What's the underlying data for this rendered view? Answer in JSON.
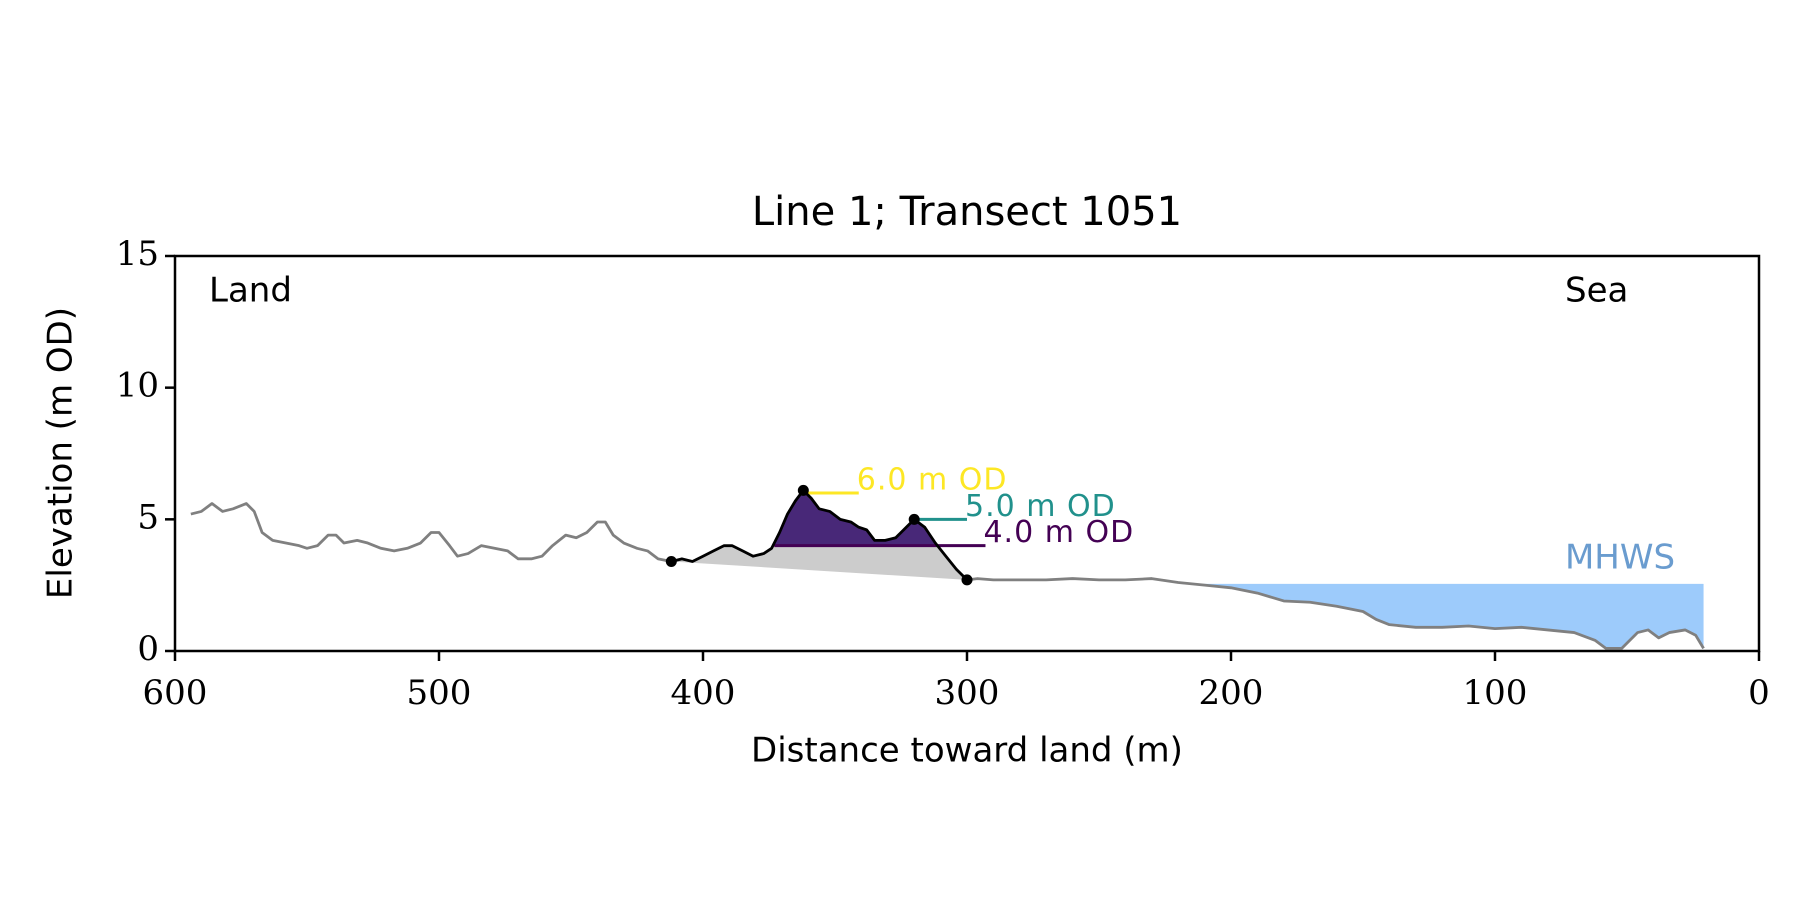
{
  "chart_data": {
    "type": "line",
    "title": "Line 1; Transect 1051",
    "xlabel": "Distance toward land (m)",
    "ylabel": "Elevation (m OD)",
    "xlim": [
      600,
      0
    ],
    "ylim": [
      0,
      15
    ],
    "xticks": [
      600,
      500,
      400,
      300,
      200,
      100,
      0
    ],
    "yticks": [
      0,
      5,
      10,
      15
    ],
    "annotations": [
      "Land",
      "Sea"
    ],
    "series": [
      {
        "color": "#808080",
        "x": [
          594,
          590,
          586,
          582,
          578,
          573,
          570,
          567,
          563,
          558,
          553,
          550,
          546,
          542,
          539,
          536,
          531,
          527,
          522,
          517,
          512,
          507,
          503,
          500,
          496,
          493,
          489,
          484,
          479,
          474,
          470,
          465,
          461,
          457,
          452,
          448,
          444,
          440,
          437,
          434,
          430,
          425,
          421,
          417,
          412
        ],
        "values": [
          5.2,
          5.3,
          5.6,
          5.3,
          5.4,
          5.6,
          5.3,
          4.5,
          4.2,
          4.1,
          4.0,
          3.9,
          4.0,
          4.4,
          4.4,
          4.1,
          4.2,
          4.1,
          3.9,
          3.8,
          3.9,
          4.1,
          4.5,
          4.5,
          4.0,
          3.6,
          3.7,
          4.0,
          3.9,
          3.8,
          3.5,
          3.5,
          3.6,
          4.0,
          4.4,
          4.3,
          4.5,
          4.9,
          4.9,
          4.4,
          4.1,
          3.9,
          3.8,
          3.5,
          3.4
        ]
      },
      {
        "color": "#000000",
        "dune": true,
        "x": [
          412,
          408,
          404,
          400,
          396,
          392,
          389,
          385,
          381,
          377,
          374,
          371,
          368,
          365,
          362,
          359,
          356,
          352,
          348,
          344,
          341,
          338,
          335,
          331,
          327,
          323,
          320,
          316,
          312,
          308,
          304,
          300
        ],
        "values": [
          3.4,
          3.5,
          3.4,
          3.6,
          3.8,
          4.0,
          4.0,
          3.8,
          3.6,
          3.7,
          3.9,
          4.5,
          5.2,
          5.7,
          6.1,
          5.8,
          5.4,
          5.3,
          5.0,
          4.9,
          4.7,
          4.6,
          4.2,
          4.2,
          4.3,
          4.7,
          5.0,
          4.7,
          4.1,
          3.6,
          3.1,
          2.7
        ]
      },
      {
        "color": "#808080",
        "x": [
          300,
          296,
          290,
          280,
          270,
          260,
          250,
          240,
          230,
          220,
          210,
          200,
          190,
          180,
          170,
          160,
          150,
          145,
          140,
          130,
          120,
          110,
          100,
          90,
          80,
          70,
          62,
          58,
          52,
          46,
          42,
          38,
          34,
          28,
          24,
          21
        ],
        "values": [
          2.7,
          2.75,
          2.7,
          2.7,
          2.7,
          2.75,
          2.7,
          2.7,
          2.75,
          2.6,
          2.5,
          2.4,
          2.2,
          1.9,
          1.85,
          1.7,
          1.5,
          1.2,
          1.0,
          0.9,
          0.9,
          0.95,
          0.85,
          0.9,
          0.8,
          0.7,
          0.4,
          0.1,
          0.1,
          0.7,
          0.8,
          0.5,
          0.7,
          0.8,
          0.6,
          0.1
        ]
      }
    ],
    "thresholds": [
      {
        "value": 6.0,
        "label": "6.0 m OD",
        "color": "#fde725"
      },
      {
        "value": 5.0,
        "label": "5.0 m OD",
        "color": "#21918c"
      },
      {
        "value": 4.0,
        "label": "4.0 m OD",
        "color": "#440154"
      }
    ],
    "fill_level": 4.0,
    "fill_color": "#482878",
    "below_color": "#cccccc",
    "mhws": {
      "label": "MHWS",
      "value": 2.55,
      "color": "#9dcbfb",
      "text_color": "#6a9ccf"
    }
  }
}
